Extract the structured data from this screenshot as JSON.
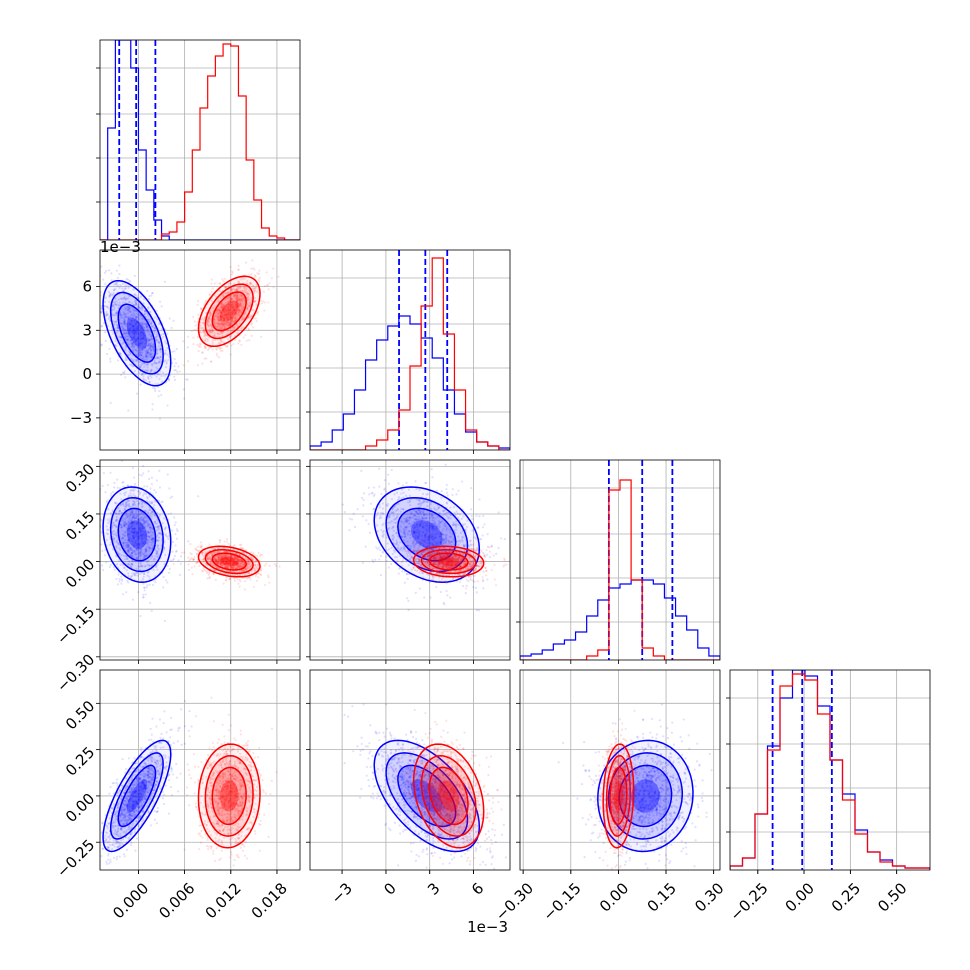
{
  "chart_data": {
    "type": "corner",
    "parameters": [
      {
        "range": [
          -0.005,
          0.021
        ],
        "ticks": [
          0.0,
          0.006,
          0.012,
          0.018
        ],
        "tick_labels": [
          "0.000",
          "0.006",
          "0.012",
          "0.018"
        ],
        "offset_label": ""
      },
      {
        "range": [
          -0.0052,
          0.0085
        ],
        "ticks": [
          -0.003,
          0.0,
          0.003,
          0.006
        ],
        "tick_labels": [
          "−3",
          "0",
          "3",
          "6"
        ],
        "offset_label": "1e−3"
      },
      {
        "range": [
          -0.31,
          0.32
        ],
        "ticks": [
          -0.3,
          -0.15,
          0.0,
          0.15,
          0.3
        ],
        "tick_labels": [
          "−0.30",
          "−0.15",
          "0.00",
          "0.15",
          "0.30"
        ],
        "offset_label": ""
      },
      {
        "range": [
          -0.4,
          0.68
        ],
        "ticks": [
          -0.25,
          0.0,
          0.25,
          0.5
        ],
        "tick_labels": [
          "−0.25",
          "0.00",
          "0.25",
          "0.50"
        ],
        "offset_label": ""
      }
    ],
    "series": [
      {
        "color": "#0000ff",
        "mean": [
          -0.0002,
          0.0028,
          0.085,
          0.0
        ],
        "std": [
          0.0022,
          0.0018,
          0.075,
          0.15
        ],
        "corr": [
          [
            1.0,
            -0.55,
            -0.15,
            0.75
          ],
          [
            -0.55,
            1.0,
            -0.3,
            -0.55
          ],
          [
            -0.15,
            -0.3,
            1.0,
            0.05
          ],
          [
            0.75,
            -0.55,
            0.05,
            1.0
          ]
        ],
        "quantiles": [
          [
            -0.0025,
            -0.0003,
            0.0022
          ],
          [
            0.0009,
            0.0027,
            0.0042
          ],
          [
            -0.03,
            0.075,
            0.17
          ],
          [
            -0.17,
            -0.01,
            0.15
          ]
        ],
        "histograms": [
          [
            0,
            0.56,
            1.0,
            1.0,
            0.86,
            0.45,
            0.25,
            0.1,
            0.02,
            0,
            0,
            0,
            0,
            0,
            0,
            0,
            0,
            0,
            0,
            0,
            0,
            0,
            0,
            0,
            0,
            0
          ],
          [
            0.02,
            0.04,
            0.1,
            0.18,
            0.3,
            0.45,
            0.55,
            0.62,
            0.67,
            0.63,
            0.56,
            0.46,
            0.3,
            0.18,
            0.09,
            0.04,
            0.02,
            0.01
          ],
          [
            0.02,
            0.03,
            0.05,
            0.08,
            0.1,
            0.14,
            0.22,
            0.3,
            0.36,
            0.38,
            0.4,
            0.4,
            0.38,
            0.31,
            0.22,
            0.15,
            0.06,
            0.02
          ],
          [
            0.02,
            0.06,
            0.28,
            0.62,
            0.86,
            1.0,
            0.97,
            0.82,
            0.55,
            0.38,
            0.2,
            0.09,
            0.05,
            0.02,
            0.01,
            0.01
          ]
        ]
      },
      {
        "color": "#ff0000",
        "mean": [
          0.0118,
          0.0043,
          0.0,
          0.0
        ],
        "std": [
          0.002,
          0.0012,
          0.024,
          0.14
        ],
        "corr": [
          [
            1.0,
            0.5,
            -0.3,
            0.05
          ],
          [
            0.5,
            1.0,
            -0.1,
            -0.3
          ],
          [
            -0.3,
            -0.1,
            1.0,
            0.1
          ],
          [
            0.05,
            -0.3,
            0.1,
            1.0
          ]
        ],
        "quantiles": [],
        "histograms": [
          [
            0,
            0,
            0,
            0,
            0,
            0,
            0,
            0,
            0.03,
            0.04,
            0.09,
            0.24,
            0.45,
            0.66,
            0.82,
            0.92,
            0.98,
            0.97,
            0.72,
            0.4,
            0.2,
            0.06,
            0.02,
            0.01,
            0,
            0
          ],
          [
            0,
            0,
            0,
            0,
            0,
            0.02,
            0.05,
            0.1,
            0.2,
            0.42,
            0.72,
            0.96,
            0.58,
            0.3,
            0.1,
            0.04,
            0.02,
            0
          ],
          [
            0,
            0,
            0,
            0,
            0,
            0,
            0.02,
            0.05,
            0.85,
            0.9,
            0.4,
            0.06,
            0.02,
            0,
            0,
            0,
            0,
            0
          ],
          [
            0.02,
            0.06,
            0.28,
            0.6,
            0.92,
            0.98,
            0.95,
            0.78,
            0.55,
            0.35,
            0.18,
            0.09,
            0.04,
            0.02,
            0.01,
            0.01
          ]
        ]
      }
    ],
    "grid": true
  }
}
